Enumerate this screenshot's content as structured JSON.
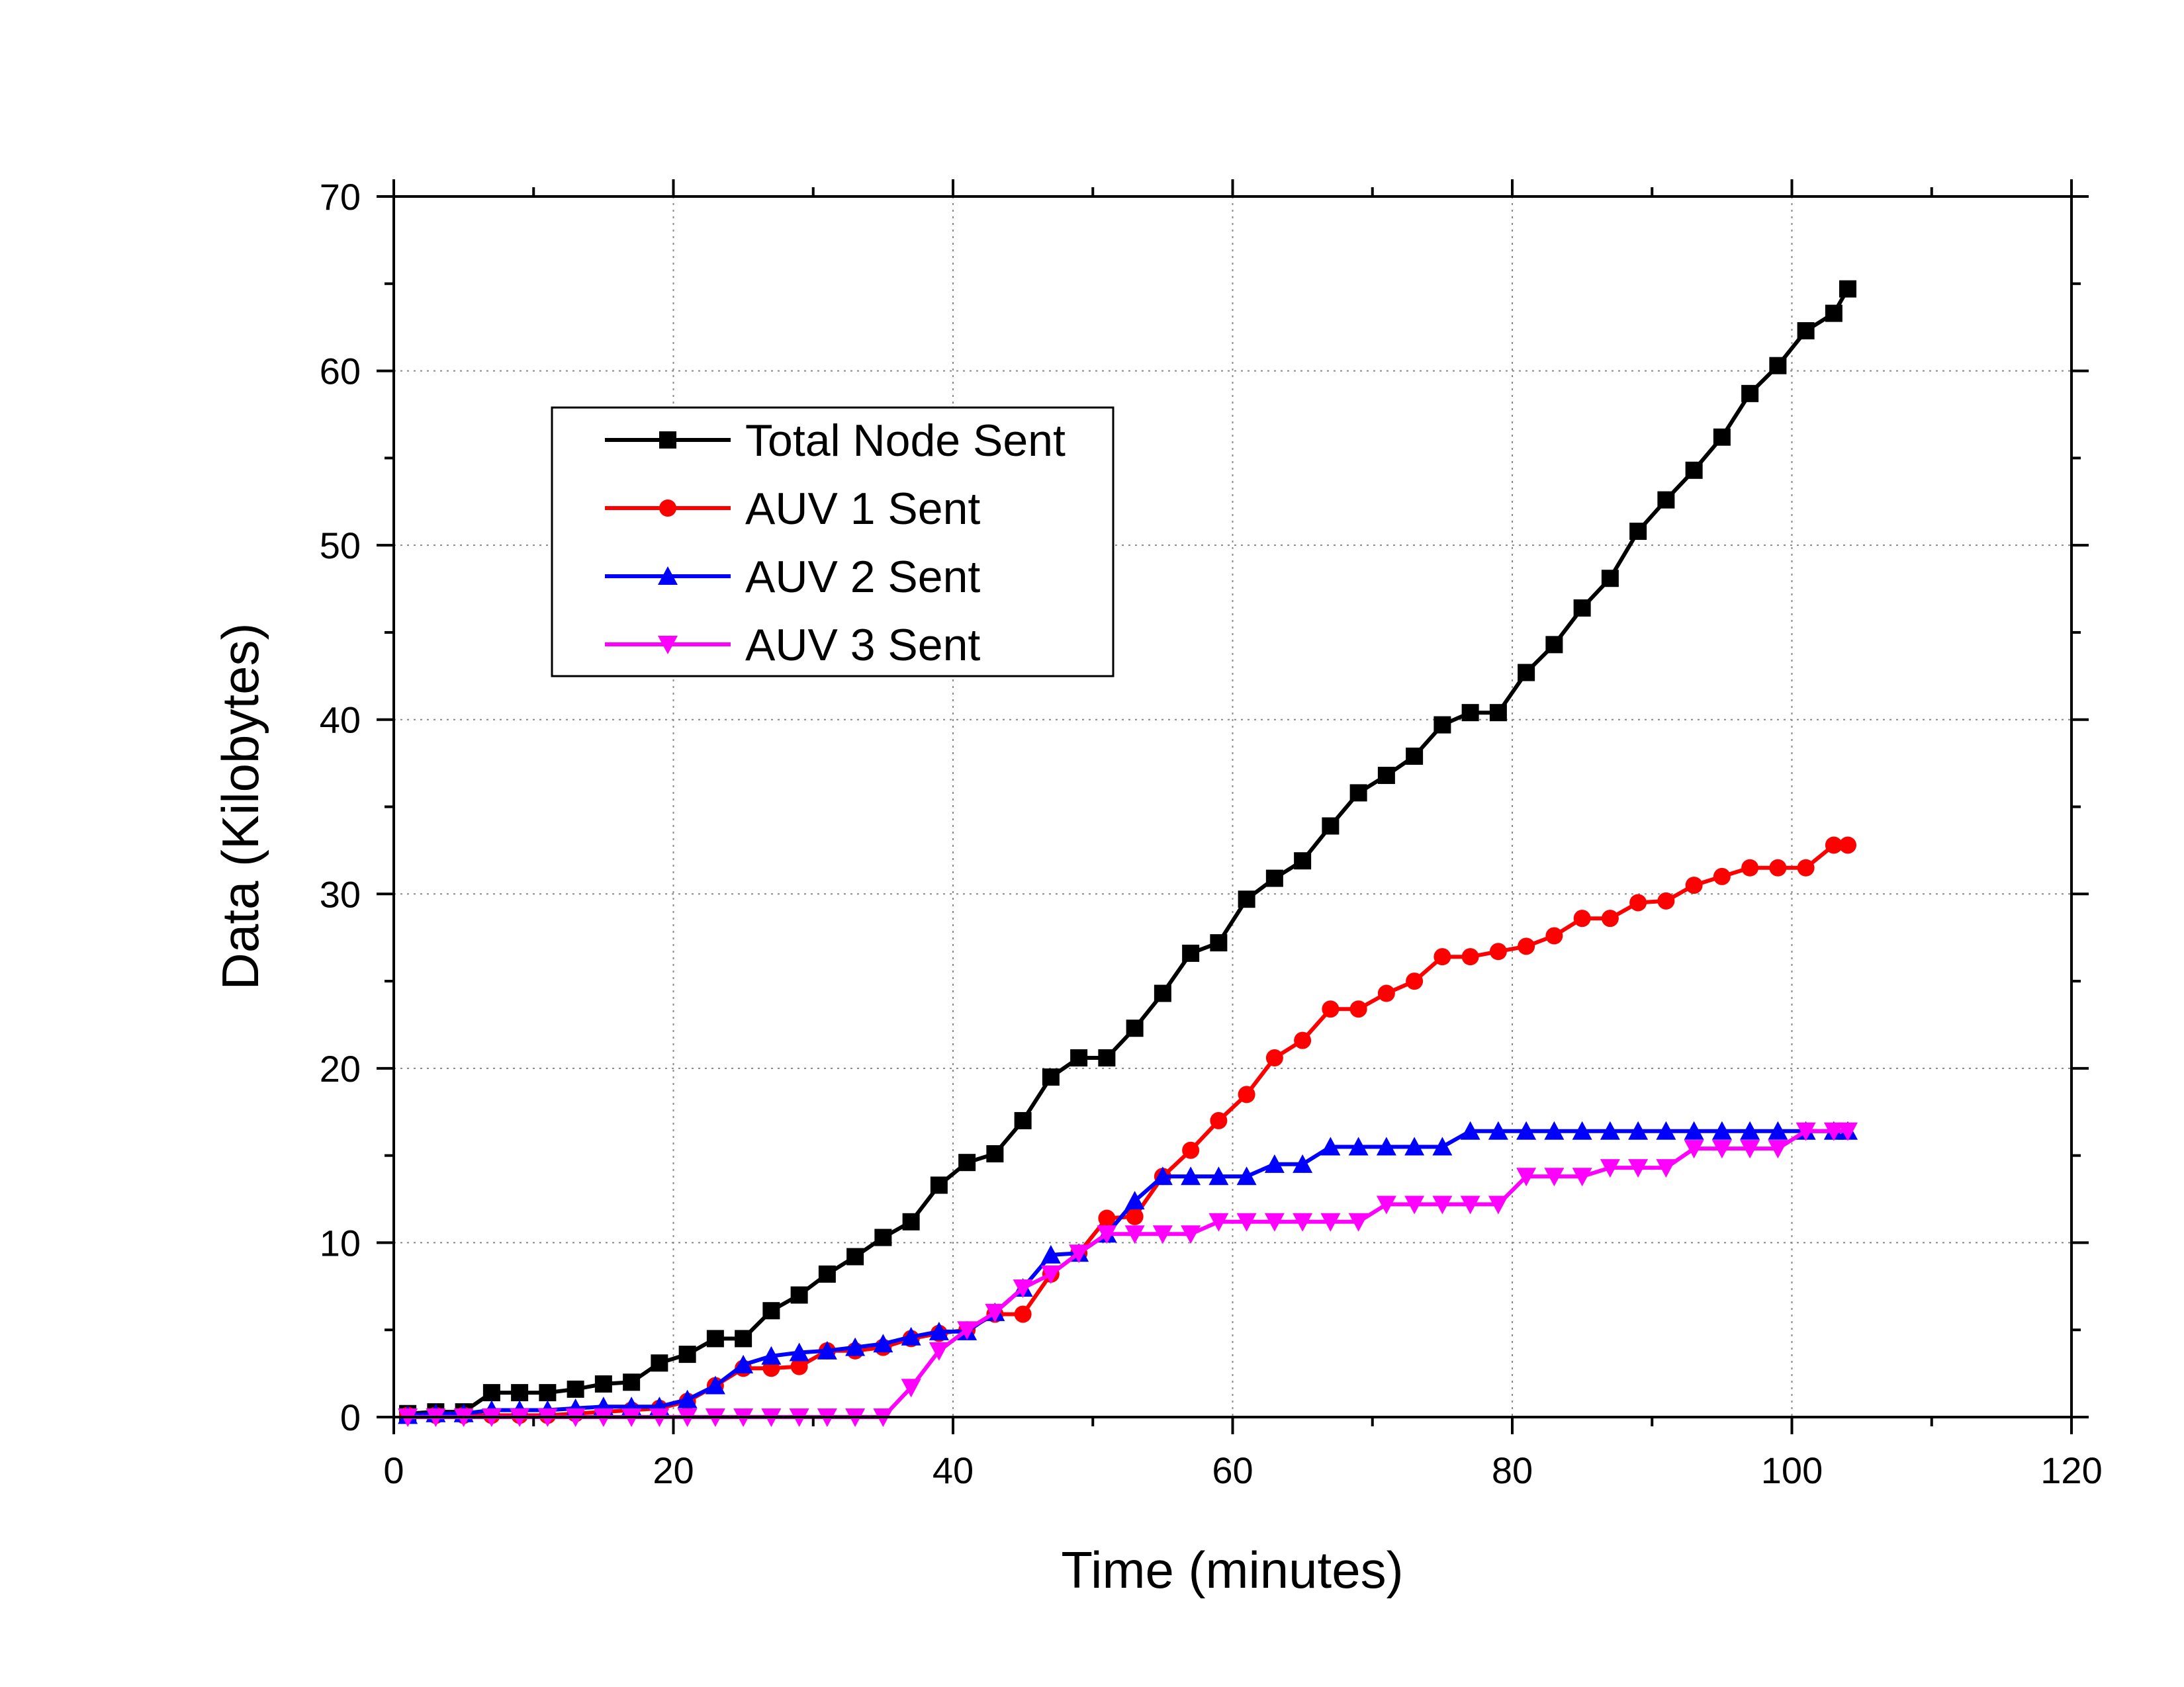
{
  "chart_data": {
    "type": "line",
    "title": "",
    "xlabel": "Time (minutes)",
    "ylabel": "Data (Kilobytes)",
    "xlim": [
      0,
      120
    ],
    "ylim": [
      0,
      70
    ],
    "x_ticks": [
      0,
      20,
      40,
      60,
      80,
      100,
      120
    ],
    "y_ticks": [
      0,
      10,
      20,
      30,
      40,
      50,
      60,
      70
    ],
    "grid": true,
    "legend_position": "upper-left",
    "series": [
      {
        "name": "Total Node Sent",
        "color": "#000000",
        "marker": "square",
        "points": [
          [
            1,
            0.2
          ],
          [
            3,
            0.3
          ],
          [
            5,
            0.3
          ],
          [
            7,
            1.4
          ],
          [
            9,
            1.4
          ],
          [
            11,
            1.4
          ],
          [
            13,
            1.6
          ],
          [
            15,
            1.9
          ],
          [
            17,
            2.0
          ],
          [
            19,
            3.1
          ],
          [
            21,
            3.6
          ],
          [
            23,
            4.5
          ],
          [
            25,
            4.5
          ],
          [
            27,
            6.1
          ],
          [
            29,
            7.0
          ],
          [
            31,
            8.2
          ],
          [
            33,
            9.2
          ],
          [
            35,
            10.3
          ],
          [
            37,
            11.2
          ],
          [
            39,
            13.3
          ],
          [
            41,
            14.6
          ],
          [
            43,
            15.1
          ],
          [
            45,
            17.0
          ],
          [
            47,
            19.5
          ],
          [
            49,
            20.6
          ],
          [
            51,
            20.6
          ],
          [
            53,
            22.3
          ],
          [
            55,
            24.3
          ],
          [
            57,
            26.6
          ],
          [
            59,
            27.2
          ],
          [
            61,
            29.7
          ],
          [
            63,
            30.9
          ],
          [
            65,
            31.9
          ],
          [
            67,
            33.9
          ],
          [
            69,
            35.8
          ],
          [
            71,
            36.8
          ],
          [
            73,
            37.9
          ],
          [
            75,
            39.7
          ],
          [
            77,
            40.4
          ],
          [
            79,
            40.4
          ],
          [
            81,
            42.7
          ],
          [
            83,
            44.3
          ],
          [
            85,
            46.4
          ],
          [
            87,
            48.1
          ],
          [
            89,
            50.8
          ],
          [
            91,
            52.6
          ],
          [
            93,
            54.3
          ],
          [
            95,
            56.2
          ],
          [
            97,
            58.7
          ],
          [
            99,
            60.3
          ],
          [
            101,
            62.3
          ],
          [
            103,
            63.3
          ],
          [
            104,
            64.7
          ]
        ]
      },
      {
        "name": "AUV 1 Sent",
        "color": "#ff0000",
        "marker": "circle",
        "points": [
          [
            1,
            0.1
          ],
          [
            3,
            0.1
          ],
          [
            5,
            0.1
          ],
          [
            7,
            0.1
          ],
          [
            9,
            0.1
          ],
          [
            11,
            0.1
          ],
          [
            13,
            0.2
          ],
          [
            15,
            0.3
          ],
          [
            17,
            0.4
          ],
          [
            19,
            0.5
          ],
          [
            21,
            0.9
          ],
          [
            23,
            1.8
          ],
          [
            25,
            2.8
          ],
          [
            27,
            2.8
          ],
          [
            29,
            2.9
          ],
          [
            31,
            3.8
          ],
          [
            33,
            3.8
          ],
          [
            35,
            4.0
          ],
          [
            37,
            4.5
          ],
          [
            39,
            4.8
          ],
          [
            41,
            5.0
          ],
          [
            43,
            5.9
          ],
          [
            45,
            5.9
          ],
          [
            47,
            8.2
          ],
          [
            49,
            9.4
          ],
          [
            51,
            11.4
          ],
          [
            53,
            11.5
          ],
          [
            55,
            13.8
          ],
          [
            57,
            15.3
          ],
          [
            59,
            17.0
          ],
          [
            61,
            18.5
          ],
          [
            63,
            20.6
          ],
          [
            65,
            21.6
          ],
          [
            67,
            23.4
          ],
          [
            69,
            23.4
          ],
          [
            71,
            24.3
          ],
          [
            73,
            25.0
          ],
          [
            75,
            26.4
          ],
          [
            77,
            26.4
          ],
          [
            79,
            26.7
          ],
          [
            81,
            27.0
          ],
          [
            83,
            27.6
          ],
          [
            85,
            28.6
          ],
          [
            87,
            28.6
          ],
          [
            89,
            29.5
          ],
          [
            91,
            29.6
          ],
          [
            93,
            30.5
          ],
          [
            95,
            31.0
          ],
          [
            97,
            31.5
          ],
          [
            99,
            31.5
          ],
          [
            101,
            31.5
          ],
          [
            103,
            32.8
          ],
          [
            104,
            32.8
          ]
        ]
      },
      {
        "name": "AUV 2 Sent",
        "color": "#0000ff",
        "marker": "triangle-up",
        "points": [
          [
            1,
            0.1
          ],
          [
            3,
            0.2
          ],
          [
            5,
            0.2
          ],
          [
            7,
            0.4
          ],
          [
            9,
            0.4
          ],
          [
            11,
            0.4
          ],
          [
            13,
            0.5
          ],
          [
            15,
            0.6
          ],
          [
            17,
            0.6
          ],
          [
            19,
            0.6
          ],
          [
            21,
            1.0
          ],
          [
            23,
            1.8
          ],
          [
            25,
            3.0
          ],
          [
            27,
            3.5
          ],
          [
            29,
            3.7
          ],
          [
            31,
            3.8
          ],
          [
            33,
            4.0
          ],
          [
            35,
            4.2
          ],
          [
            37,
            4.6
          ],
          [
            39,
            4.9
          ],
          [
            41,
            4.9
          ],
          [
            43,
            6.0
          ],
          [
            45,
            7.4
          ],
          [
            47,
            9.3
          ],
          [
            49,
            9.4
          ],
          [
            51,
            10.5
          ],
          [
            53,
            12.4
          ],
          [
            55,
            13.8
          ],
          [
            57,
            13.8
          ],
          [
            59,
            13.8
          ],
          [
            61,
            13.8
          ],
          [
            63,
            14.5
          ],
          [
            65,
            14.5
          ],
          [
            67,
            15.5
          ],
          [
            69,
            15.5
          ],
          [
            71,
            15.5
          ],
          [
            73,
            15.5
          ],
          [
            75,
            15.5
          ],
          [
            77,
            16.4
          ],
          [
            79,
            16.4
          ],
          [
            81,
            16.4
          ],
          [
            83,
            16.4
          ],
          [
            85,
            16.4
          ],
          [
            87,
            16.4
          ],
          [
            89,
            16.4
          ],
          [
            91,
            16.4
          ],
          [
            93,
            16.4
          ],
          [
            95,
            16.4
          ],
          [
            97,
            16.4
          ],
          [
            99,
            16.4
          ],
          [
            101,
            16.4
          ],
          [
            103,
            16.4
          ],
          [
            104,
            16.4
          ]
        ]
      },
      {
        "name": "AUV 3 Sent",
        "color": "#ff00ff",
        "marker": "triangle-down",
        "points": [
          [
            1,
            0.0
          ],
          [
            3,
            0.0
          ],
          [
            5,
            0.0
          ],
          [
            7,
            0.0
          ],
          [
            9,
            0.0
          ],
          [
            11,
            0.0
          ],
          [
            13,
            0.0
          ],
          [
            15,
            0.0
          ],
          [
            17,
            0.0
          ],
          [
            19,
            0.0
          ],
          [
            21,
            0.0
          ],
          [
            23,
            0.0
          ],
          [
            25,
            0.0
          ],
          [
            27,
            0.0
          ],
          [
            29,
            0.0
          ],
          [
            31,
            0.0
          ],
          [
            33,
            0.0
          ],
          [
            35,
            0.0
          ],
          [
            37,
            1.7
          ],
          [
            39,
            3.8
          ],
          [
            41,
            5.0
          ],
          [
            43,
            6.0
          ],
          [
            45,
            7.4
          ],
          [
            47,
            8.2
          ],
          [
            49,
            9.4
          ],
          [
            51,
            10.5
          ],
          [
            53,
            10.5
          ],
          [
            55,
            10.5
          ],
          [
            57,
            10.5
          ],
          [
            59,
            11.2
          ],
          [
            61,
            11.2
          ],
          [
            63,
            11.2
          ],
          [
            65,
            11.2
          ],
          [
            67,
            11.2
          ],
          [
            69,
            11.2
          ],
          [
            71,
            12.2
          ],
          [
            73,
            12.2
          ],
          [
            75,
            12.2
          ],
          [
            77,
            12.2
          ],
          [
            79,
            12.2
          ],
          [
            81,
            13.8
          ],
          [
            83,
            13.8
          ],
          [
            85,
            13.8
          ],
          [
            87,
            14.3
          ],
          [
            89,
            14.3
          ],
          [
            91,
            14.3
          ],
          [
            93,
            15.4
          ],
          [
            95,
            15.4
          ],
          [
            97,
            15.4
          ],
          [
            99,
            15.4
          ],
          [
            101,
            16.4
          ],
          [
            103,
            16.4
          ],
          [
            104,
            16.4
          ]
        ]
      }
    ]
  }
}
